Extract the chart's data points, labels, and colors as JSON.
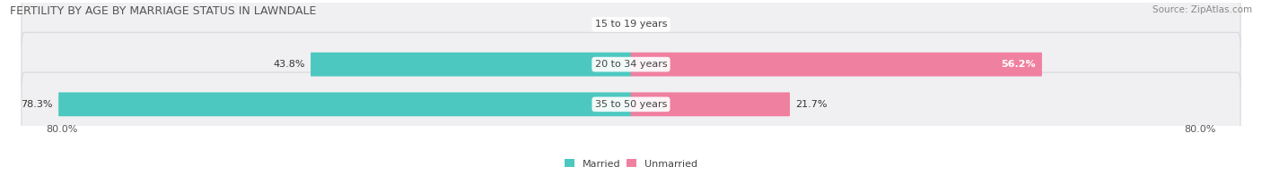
{
  "title": "FERTILITY BY AGE BY MARRIAGE STATUS IN LAWNDALE",
  "source": "Source: ZipAtlas.com",
  "categories": [
    "15 to 19 years",
    "20 to 34 years",
    "35 to 50 years"
  ],
  "married_values": [
    0.0,
    43.8,
    78.3
  ],
  "unmarried_values": [
    0.0,
    56.2,
    21.7
  ],
  "married_color": "#4dc8c0",
  "unmarried_color": "#f080a0",
  "row_bg_color": "#f0f0f2",
  "row_border_color": "#d8d8dc",
  "axis_left_label": "80.0%",
  "axis_right_label": "80.0%",
  "max_value": 80.0,
  "title_fontsize": 9,
  "source_fontsize": 7.5,
  "label_fontsize": 8,
  "category_fontsize": 8,
  "figsize": [
    14.06,
    1.96
  ],
  "dpi": 100
}
